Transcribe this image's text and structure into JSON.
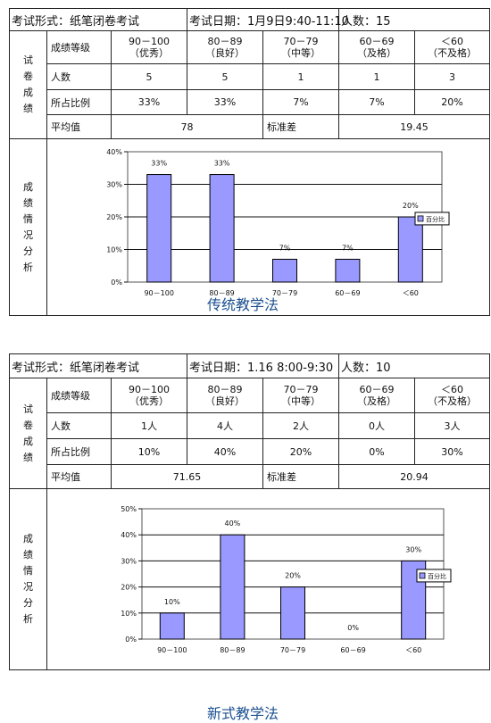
{
  "tables": [
    {
      "exam_form": "考试形式：纸笔闭卷考试",
      "exam_date": "考试日期：1月9日9:40-11:10",
      "headcount": "人数：15",
      "side_title_top": [
        "试",
        "卷",
        "成",
        "绩"
      ],
      "side_title_bottom": [
        "成",
        "绩",
        "情",
        "况",
        "分",
        "析"
      ],
      "row_labels": {
        "grade": "成绩等级",
        "count": "人数",
        "ratio": "所占比例",
        "avg": "平均值",
        "std": "标准差"
      },
      "grades": [
        {
          "range": "90－100",
          "name": "（优秀）"
        },
        {
          "range": "80－89",
          "name": "（良好）"
        },
        {
          "range": "70－79",
          "name": "（中等）"
        },
        {
          "range": "60－69",
          "name": "（及格）"
        },
        {
          "range": "＜60",
          "name": "（不及格）"
        }
      ],
      "counts": [
        "5",
        "5",
        "1",
        "1",
        "3"
      ],
      "ratios": [
        "33%",
        "33%",
        "7%",
        "7%",
        "20%"
      ],
      "average": "78",
      "std_dev": "19.45"
    },
    {
      "exam_form": "考试形式：纸笔闭卷考试",
      "exam_date": "考试日期：1.16 8:00-9:30",
      "headcount": "人数：10",
      "side_title_top": [
        "试",
        "卷",
        "成",
        "绩"
      ],
      "side_title_bottom": [
        "成",
        "绩",
        "情",
        "况",
        "分",
        "析"
      ],
      "row_labels": {
        "grade": "成绩等级",
        "count": "人数",
        "ratio": "所占比例",
        "avg": "平均值",
        "std": "标准差"
      },
      "grades": [
        {
          "range": "90－100",
          "name": "（优秀）"
        },
        {
          "range": "80－89",
          "name": "（良好）"
        },
        {
          "range": "70－79",
          "name": "（中等）"
        },
        {
          "range": "60－69",
          "name": "（及格）"
        },
        {
          "range": "＜60",
          "name": "（不及格）"
        }
      ],
      "counts": [
        "1人",
        "4人",
        "2人",
        "0人",
        "3人"
      ],
      "ratios": [
        "10%",
        "40%",
        "20%",
        "0%",
        "30%"
      ],
      "average": "71.65",
      "std_dev": "20.94"
    }
  ],
  "chart_data": [
    {
      "type": "bar",
      "categories": [
        "90－100",
        "80－89",
        "70－79",
        "60－69",
        "＜60"
      ],
      "series": [
        {
          "name": "百分比",
          "values": [
            33,
            33,
            7,
            7,
            20
          ]
        }
      ],
      "data_labels": [
        "33%",
        "33%",
        "7%",
        "7%",
        "20%"
      ],
      "y_ticks": [
        "0%",
        "10%",
        "20%",
        "30%",
        "40%"
      ],
      "ylim": [
        0,
        40
      ],
      "grid": true,
      "legend": "right",
      "bar_color": "#9999ff"
    },
    {
      "type": "bar",
      "categories": [
        "90－100",
        "80－89",
        "70－79",
        "60－69",
        "＜60"
      ],
      "series": [
        {
          "name": "百分比",
          "values": [
            10,
            40,
            20,
            0,
            30
          ]
        }
      ],
      "data_labels": [
        "10%",
        "40%",
        "20%",
        "0%",
        "30%"
      ],
      "y_ticks": [
        "0%",
        "10%",
        "20%",
        "30%",
        "40%",
        "50%"
      ],
      "ylim": [
        0,
        50
      ],
      "grid": true,
      "legend": "right",
      "bar_color": "#9999ff"
    }
  ],
  "captions": [
    "传统教学法",
    "新式教学法"
  ]
}
